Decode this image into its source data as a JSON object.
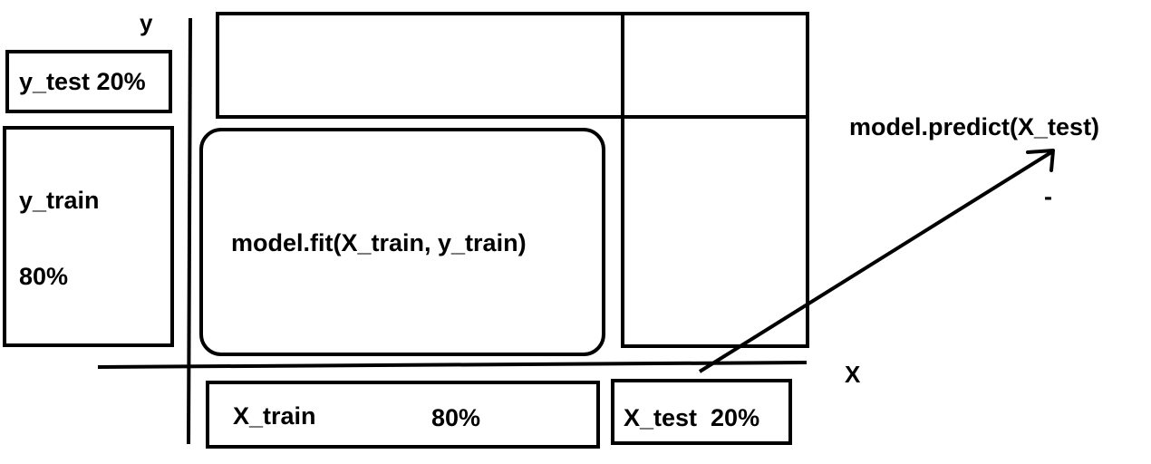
{
  "axes": {
    "y_label": "y",
    "x_label": "X"
  },
  "y_test_box": {
    "label": "y_test 20%"
  },
  "y_train_box": {
    "label": "y_train",
    "percent": "80%"
  },
  "fit_box": {
    "label": "model.fit(X_train, y_train)"
  },
  "x_train_box": {
    "label": "X_train",
    "percent": "80%"
  },
  "x_test_box": {
    "label": "X_test  20%"
  },
  "predict": {
    "label": "model.predict(X_test)",
    "mark": "-"
  },
  "colors": {
    "stroke": "#000000",
    "background": "#ffffff"
  }
}
